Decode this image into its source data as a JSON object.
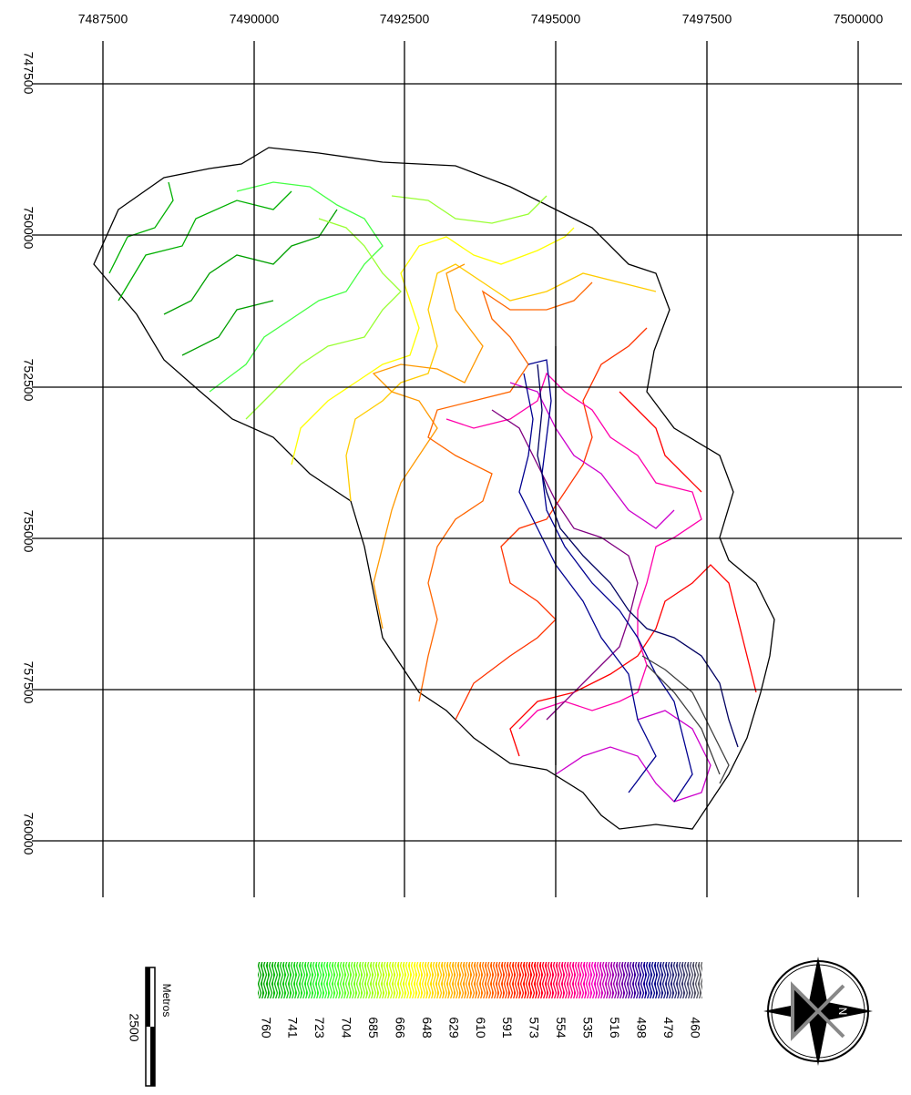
{
  "x_labels": [
    7487500,
    7490000,
    7492500,
    7495000,
    7497500,
    7500000
  ],
  "y_labels": [
    "747500",
    "750000",
    "752500",
    "755000",
    "757500",
    "760000"
  ],
  "legend": {
    "labels": [
      760,
      741,
      723,
      704,
      685,
      666,
      648,
      629,
      610,
      591,
      573,
      554,
      535,
      516,
      498,
      479,
      460
    ]
  },
  "scale_bar": {
    "value": "2500",
    "unit": "Metros"
  },
  "compass": {
    "label": "N"
  }
}
